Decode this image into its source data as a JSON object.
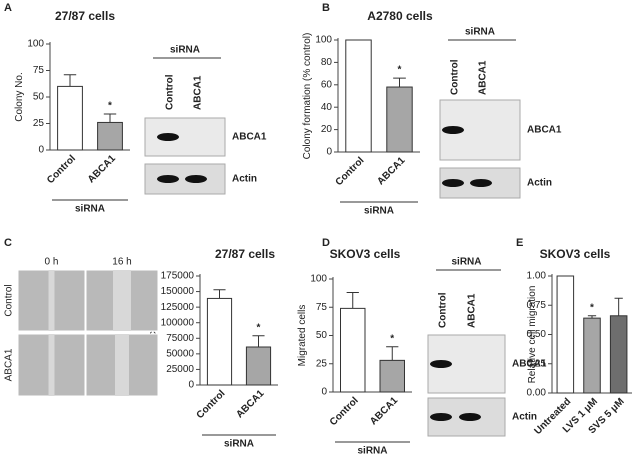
{
  "chart_data": [
    {
      "type": "bar",
      "panel_label": "A",
      "title": "27/87 cells",
      "y_label": "Colony No.",
      "categories": [
        "Control",
        "ABCA1"
      ],
      "values": [
        60,
        26
      ],
      "errors": [
        11,
        8
      ],
      "colors": [
        "#ffffff",
        "#a6a6a6"
      ],
      "annotations": [
        null,
        "*"
      ],
      "group_label": "siRNA",
      "ylim": [
        0,
        100
      ],
      "yticks": [
        0,
        25,
        50,
        75,
        100
      ],
      "blot": {
        "header": "siRNA",
        "lanes": [
          "Control",
          "ABCA1"
        ],
        "rows": [
          "ABCA1",
          "Actin"
        ]
      }
    },
    {
      "type": "bar",
      "panel_label": "B",
      "title": "A2780 cells",
      "y_label": "Colony formation (% control)",
      "categories": [
        "Control",
        "ABCA1"
      ],
      "values": [
        100,
        58
      ],
      "errors": [
        0,
        8
      ],
      "colors": [
        "#ffffff",
        "#a6a6a6"
      ],
      "annotations": [
        null,
        "*"
      ],
      "group_label": "siRNA",
      "ylim": [
        0,
        100
      ],
      "yticks": [
        0,
        20,
        40,
        60,
        80,
        100
      ],
      "blot": {
        "header": "siRNA",
        "lanes": [
          "Control",
          "ABCA1"
        ],
        "rows": [
          "ABCA1",
          "Actin"
        ]
      }
    },
    {
      "type": "bar",
      "panel_label": "C",
      "title": "27/87 cells",
      "y_label": "Area covered",
      "categories": [
        "Control",
        "ABCA1"
      ],
      "values": [
        139000,
        61000
      ],
      "errors": [
        14000,
        18000
      ],
      "colors": [
        "#ffffff",
        "#a6a6a6"
      ],
      "annotations": [
        null,
        "*"
      ],
      "group_label": "siRNA",
      "ylim": [
        0,
        175000
      ],
      "yticks": [
        0,
        25000,
        50000,
        75000,
        100000,
        125000,
        150000,
        175000
      ],
      "images": {
        "columns": [
          "0 h",
          "16 h"
        ],
        "rows": [
          "Control",
          "ABCA1"
        ]
      }
    },
    {
      "type": "bar",
      "panel_label": "D",
      "title": "SKOV3 cells",
      "y_label": "Migrated cells",
      "categories": [
        "Control",
        "ABCA1"
      ],
      "values": [
        74,
        28
      ],
      "errors": [
        14,
        12
      ],
      "colors": [
        "#ffffff",
        "#a6a6a6"
      ],
      "annotations": [
        null,
        "*"
      ],
      "group_label": "siRNA",
      "ylim": [
        0,
        100
      ],
      "yticks": [
        0,
        25,
        50,
        75,
        100
      ],
      "blot": {
        "header": "siRNA",
        "lanes": [
          "Control",
          "ABCA1"
        ],
        "rows": [
          "ABCA1",
          "Actin"
        ]
      }
    },
    {
      "type": "bar",
      "panel_label": "E",
      "title": "SKOV3 cells",
      "y_label": "Relative cell migration",
      "categories": [
        "Untreated",
        "LVS 1 μM",
        "SVS 5 μM"
      ],
      "values": [
        1.0,
        0.64,
        0.66
      ],
      "errors": [
        0,
        0.02,
        0.15
      ],
      "colors": [
        "#ffffff",
        "#a6a6a6",
        "#6e6e6e"
      ],
      "annotations": [
        null,
        "*",
        null
      ],
      "ylim": [
        0,
        1
      ],
      "yticks": [
        {
          "value": 0,
          "label": "0.00"
        },
        0.25,
        {
          "value": 0.5,
          "label": "0.50"
        },
        0.75,
        {
          "value": 1,
          "label": "1.00"
        }
      ]
    }
  ]
}
